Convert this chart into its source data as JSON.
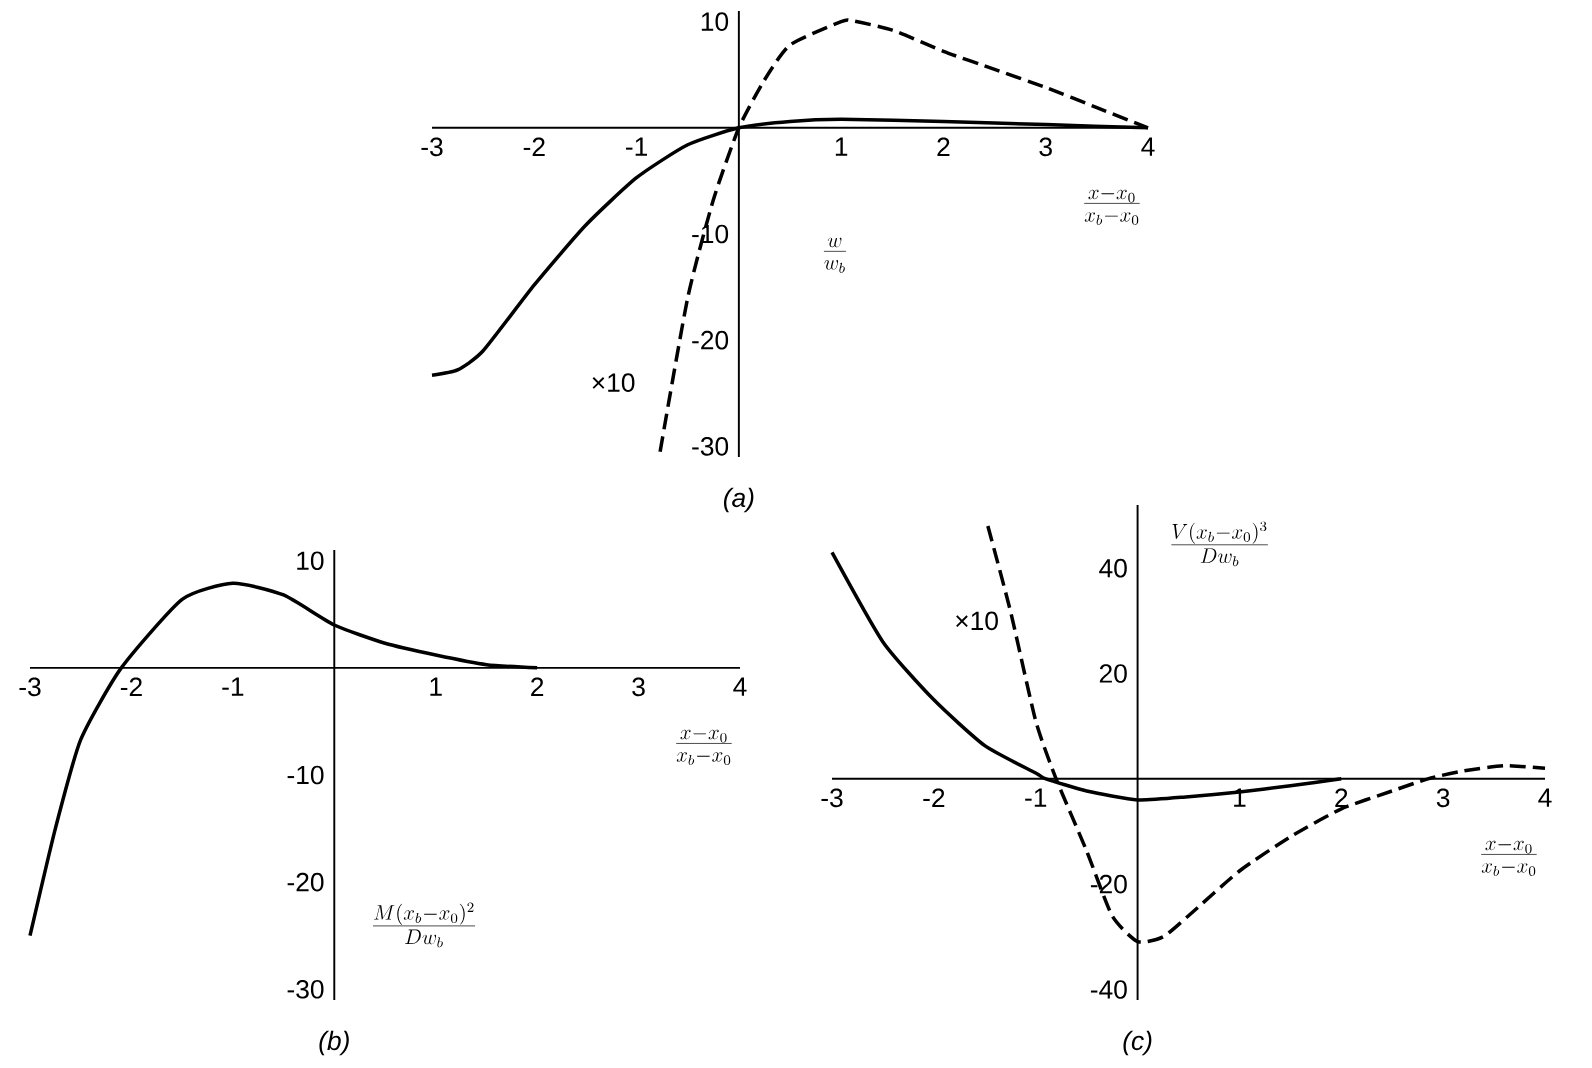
{
  "chart_data": [
    {
      "type": "line",
      "xlabel": "\\frac{x - x_0}{x_b - x_0}",
      "ylabel": "\\frac{w}{w_b}",
      "xlim": [
        -3,
        4
      ],
      "ylim": [
        -31,
        11
      ],
      "xticks": [
        -3,
        -2,
        -1,
        1,
        2,
        3,
        4
      ],
      "yticks": [
        -30,
        -20,
        -10,
        10
      ],
      "series": [
        {
          "color": "#000000",
          "line_style": "solid",
          "x": [
            -3,
            -2.75,
            -2.5,
            -2,
            -1.5,
            -1,
            -0.5,
            0,
            0.5,
            1,
            2,
            3,
            4
          ],
          "values": [
            -23.3,
            -22.8,
            -21,
            -14.8,
            -9.2,
            -4.7,
            -1.6,
            0,
            0.6,
            0.8,
            0.6,
            0.3,
            0
          ]
        },
        {
          "color": "#000000",
          "line_style": "dashed",
          "x": [
            -0.77,
            -0.5,
            -0.25,
            0,
            0.25,
            0.5,
            1,
            1.1,
            1.5,
            2,
            2.5,
            3,
            3.5,
            4
          ],
          "values": [
            -30.5,
            -16,
            -6.8,
            0,
            4.5,
            7.8,
            10,
            10.1,
            9.2,
            7.2,
            5.5,
            3.8,
            1.9,
            0
          ]
        }
      ],
      "annotations": [
        "×10",
        "(a)"
      ]
    },
    {
      "type": "line",
      "xlabel": "\\frac{x - x_0}{x_b - x_0}",
      "ylabel": "\\frac{M(x_b - x_0)^2}{D w_b}",
      "xlim": [
        -3,
        4
      ],
      "ylim": [
        -31,
        11
      ],
      "xticks": [
        -3,
        -2,
        -1,
        1,
        2,
        3,
        4
      ],
      "yticks": [
        -30,
        -20,
        -10,
        10
      ],
      "series": [
        {
          "color": "#000000",
          "line_style": "solid",
          "x": [
            -3,
            -2.75,
            -2.5,
            -2.1,
            -1.5,
            -1,
            -0.5,
            0,
            0.5,
            1,
            1.5,
            2
          ],
          "values": [
            -25,
            -15,
            -6.7,
            0,
            6.4,
            7.9,
            6.8,
            4,
            2.3,
            1.2,
            0.3,
            0
          ]
        }
      ],
      "annotations": [
        "(b)"
      ]
    },
    {
      "type": "line",
      "xlabel": "\\frac{x - x_0}{x_b - x_0}",
      "ylabel": "\\frac{V(x_b - x_0)^3}{D w_b}",
      "xlim": [
        -3,
        4
      ],
      "ylim": [
        -42,
        52
      ],
      "xticks": [
        -3,
        -2,
        -1,
        1,
        2,
        3,
        4
      ],
      "yticks": [
        -40,
        -20,
        20,
        40
      ],
      "series": [
        {
          "color": "#000000",
          "line_style": "solid",
          "x": [
            -3,
            -2.5,
            -2,
            -1.5,
            -1,
            -0.9,
            -0.5,
            0,
            0.5,
            1,
            1.5,
            2
          ],
          "values": [
            43,
            26,
            15,
            6.3,
            1.1,
            0,
            -2.3,
            -4,
            -3.4,
            -2.5,
            -1.3,
            0
          ]
        },
        {
          "color": "#000000",
          "line_style": "dashed",
          "x": [
            -1.47,
            -1.25,
            -1,
            -0.8,
            -0.5,
            -0.25,
            0,
            0.25,
            0.5,
            1,
            1.5,
            2,
            2.5,
            2.85,
            3.2,
            3.6,
            4
          ],
          "values": [
            48,
            32,
            11,
            0,
            -13.7,
            -26,
            -30.9,
            -30,
            -26,
            -17.5,
            -11,
            -5.7,
            -2.3,
            0,
            1.5,
            2.5,
            2
          ]
        }
      ],
      "annotations": [
        "×10",
        "(c)"
      ]
    }
  ]
}
